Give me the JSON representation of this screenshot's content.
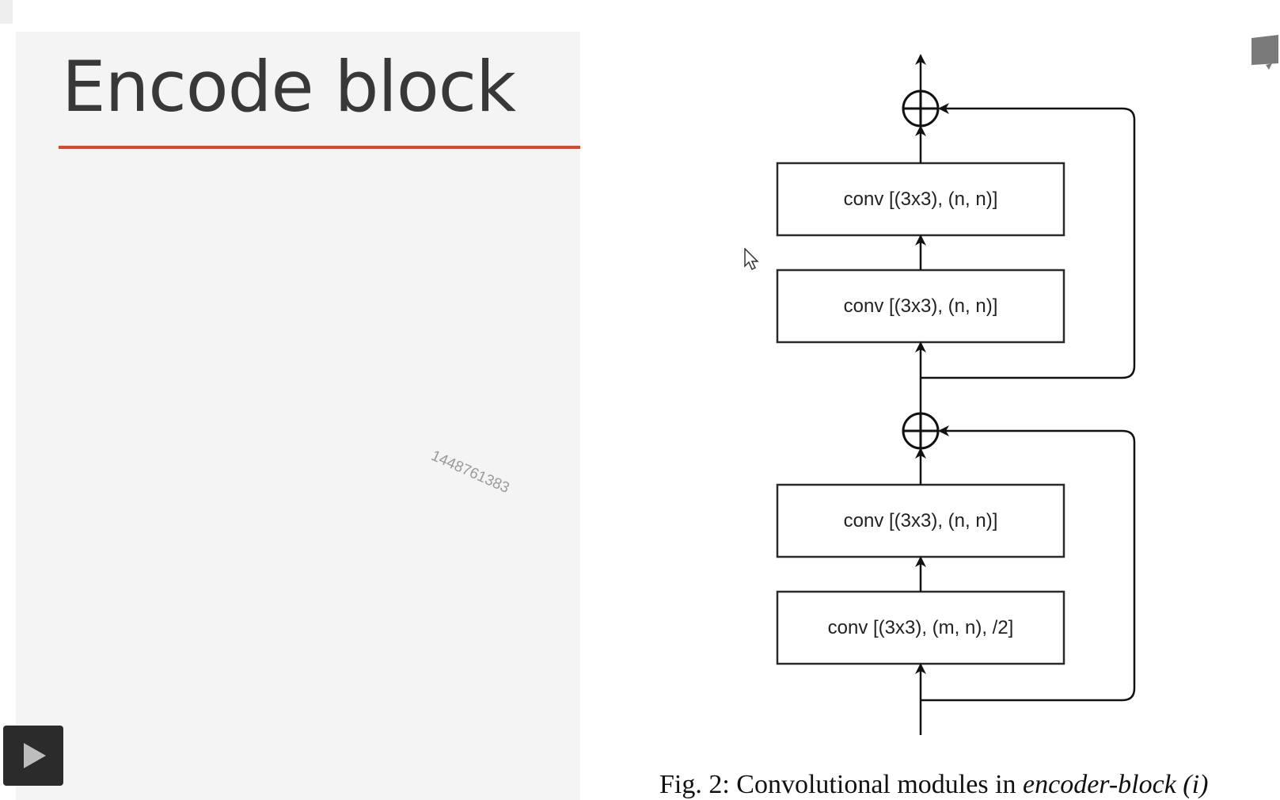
{
  "slide": {
    "title": "Encode block",
    "watermark": "1448761383",
    "accent_color": "#d6492c"
  },
  "figure": {
    "blocks": [
      "conv [(3x3), (n, n)]",
      "conv [(3x3), (n, n)]",
      "conv [(3x3), (n, n)]",
      "conv [(3x3), (m, n), /2]"
    ],
    "caption_prefix": "Fig. 2: Convolutional modules in ",
    "caption_emphasis": "encoder-block (i)"
  },
  "controls": {
    "play_icon": "play-icon",
    "cursor_icon": "mouse-pointer-icon"
  }
}
